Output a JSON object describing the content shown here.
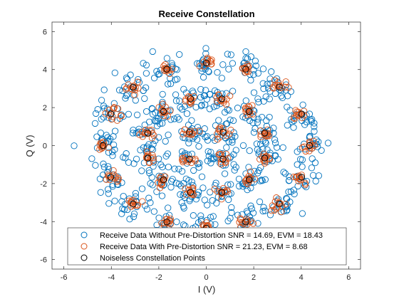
{
  "chart_data": {
    "type": "scatter",
    "title": "Receive Constellation",
    "xlabel": "I (V)",
    "ylabel": "Q (V)",
    "xlim": [
      -6.5,
      6.5
    ],
    "ylim": [
      -6.5,
      6.5
    ],
    "xticks": [
      -6,
      -4,
      -2,
      0,
      2,
      4,
      6
    ],
    "yticks": [
      -6,
      -4,
      -2,
      0,
      2,
      4,
      6
    ],
    "grid": false,
    "legend_position": "bottom",
    "constellation": {
      "rings": [
        {
          "radius": 1.0,
          "points": 4,
          "phase_deg": 45
        },
        {
          "radius": 2.55,
          "points": 12,
          "phase_deg": 15
        },
        {
          "radius": 4.35,
          "points": 16,
          "phase_deg": 0
        }
      ]
    },
    "series": [
      {
        "name": "Receive Data Without Pre-Distortion SNR = 14.69, EVM = 18.43",
        "color": "#0072BD",
        "marker": "circle",
        "spread": 0.42,
        "samples_per_point": 22
      },
      {
        "name": "Receive Data With Pre-Distortion SNR = 21.23, EVM = 8.68",
        "color": "#D95319",
        "marker": "circle",
        "spread": 0.15,
        "samples_per_point": 12
      },
      {
        "name": "Noiseless Constellation Points",
        "color": "#000000",
        "marker": "circle"
      }
    ]
  }
}
